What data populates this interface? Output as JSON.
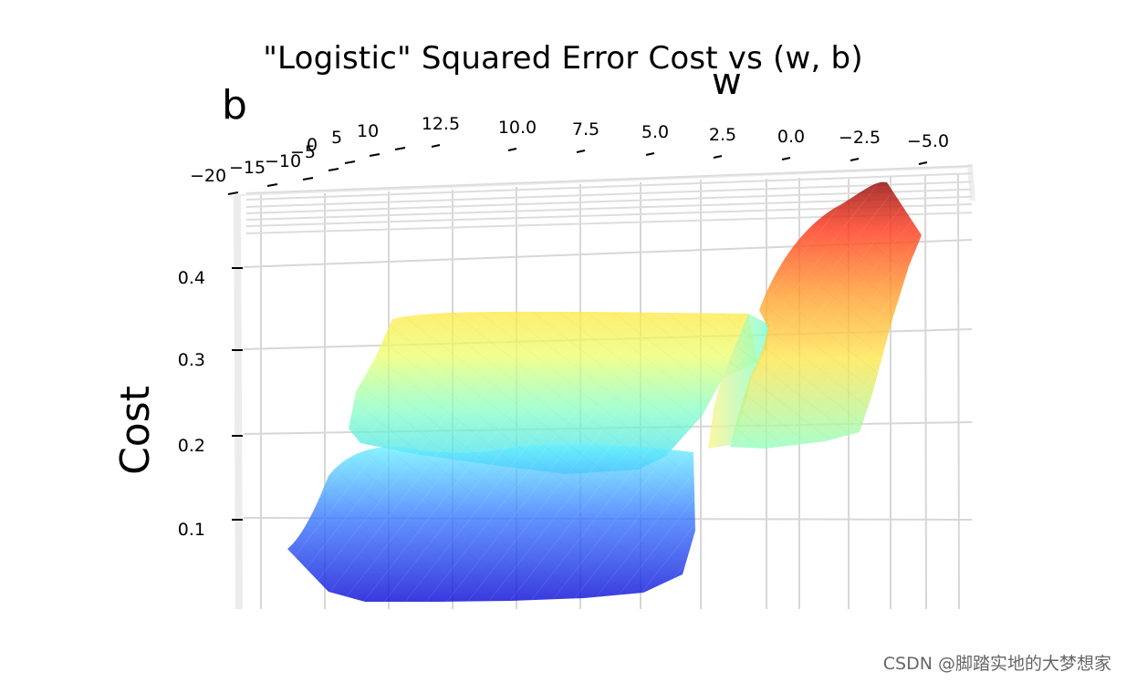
{
  "title": "\"Logistic\" Squared Error Cost vs (w, b)",
  "watermark": "CSDN @脚踏实地的大梦想家",
  "chart_data": {
    "type": "surface",
    "title": "\"Logistic\" Squared Error Cost vs (w, b)",
    "xlabel": "w",
    "ylabel": "b",
    "zlabel": "Cost",
    "colormap": "jet",
    "alpha": 0.75,
    "w_ticks": [
      "12.5",
      "10.0",
      "7.5",
      "5.0",
      "2.5",
      "0.0",
      "−2.5",
      "−5.0"
    ],
    "b_ticks": [
      "−20",
      "−15",
      "−10",
      "−5",
      "0",
      "5",
      "10"
    ],
    "cost_ticks": [
      "0.1",
      "0.2",
      "0.3",
      "0.4"
    ],
    "w_range": [
      -5,
      12.5
    ],
    "b_range": [
      -20,
      10
    ],
    "cost_range": [
      0.0,
      0.5
    ],
    "grid": true,
    "surface_description_points": [
      {
        "w": 12.5,
        "cost_low": 0.05,
        "cost_high": 0.31
      },
      {
        "w": 10.0,
        "cost_low": 0.03,
        "cost_high": 0.31
      },
      {
        "w": 5.0,
        "cost_low": 0.04,
        "cost_high": 0.31
      },
      {
        "w": 2.5,
        "cost_low": 0.06,
        "cost_high": 0.31
      },
      {
        "w": 0.0,
        "cost_low": 0.2,
        "cost_high": 0.33
      },
      {
        "w": -2.5,
        "cost_low": 0.2,
        "cost_high": 0.46
      },
      {
        "w": -5.0,
        "cost_low": 0.2,
        "cost_high": 0.43
      }
    ]
  }
}
